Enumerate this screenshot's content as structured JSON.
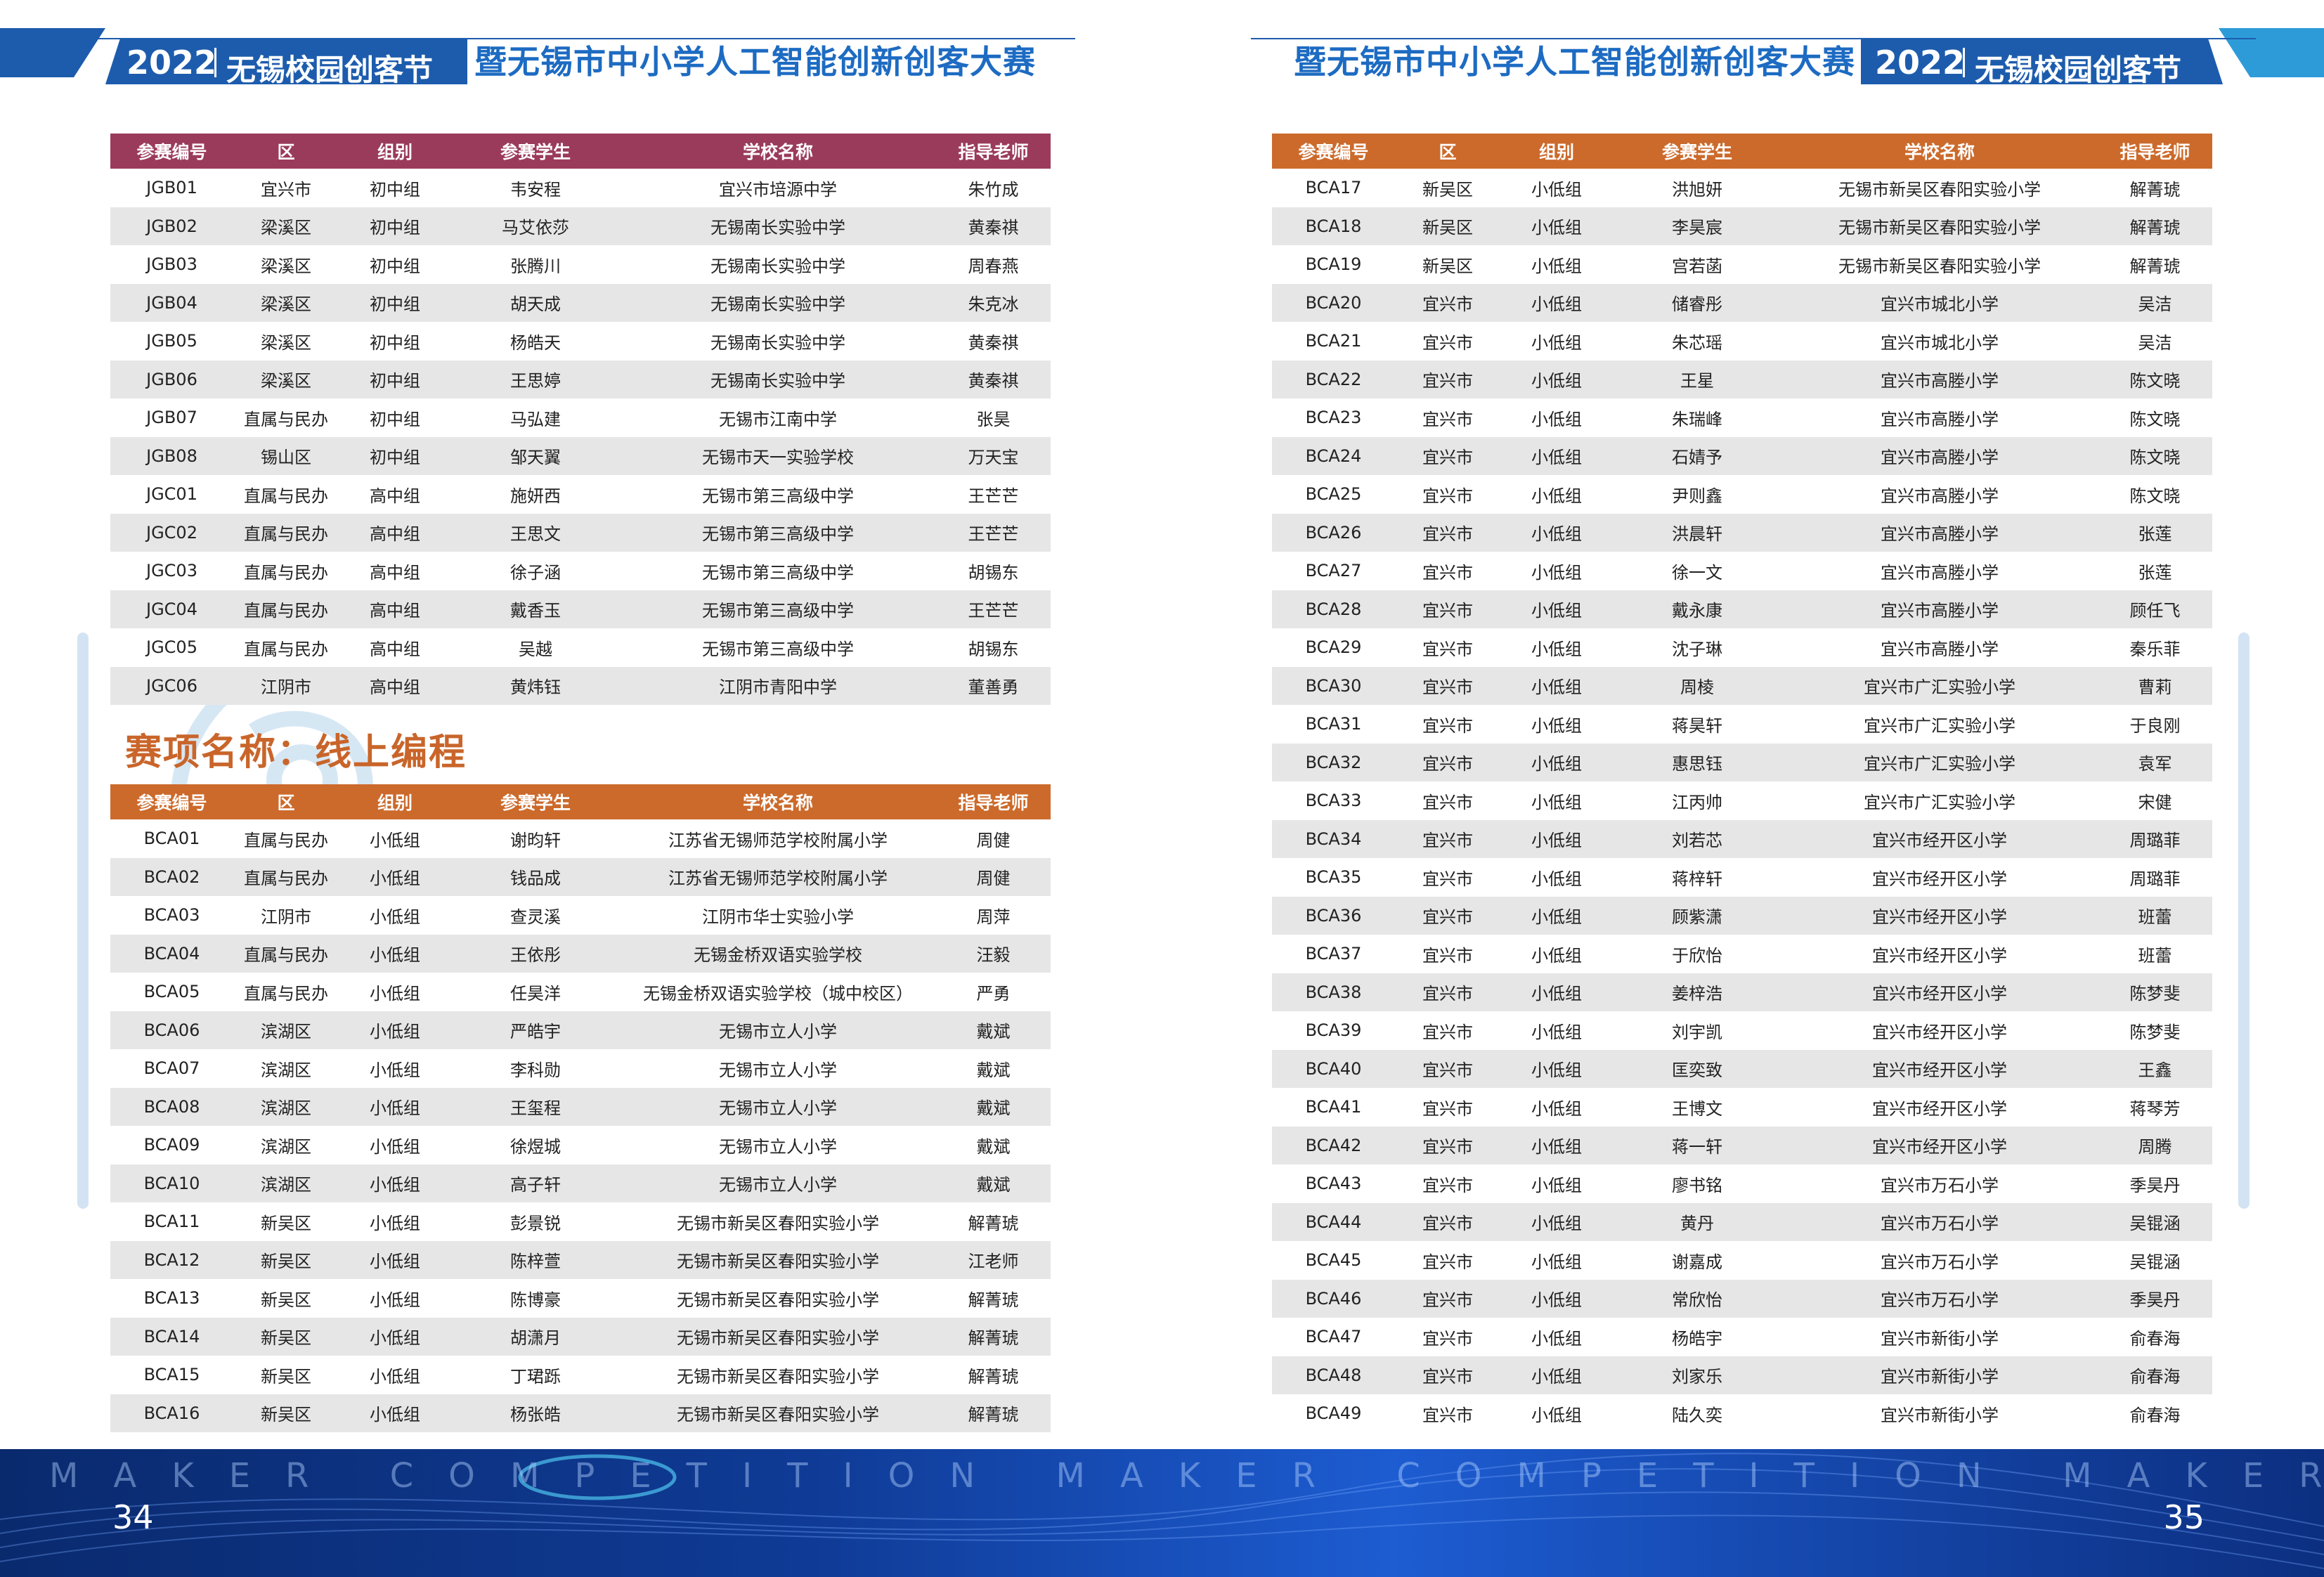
{
  "header": {
    "year": "2022",
    "festival": "无锡校园创客节",
    "title": "暨无锡市中小学人工智能创新创客大赛"
  },
  "columns": [
    "参赛编号",
    "区",
    "组别",
    "参赛学生",
    "学校名称",
    "指导老师"
  ],
  "section_title": "赛项名称：线上编程",
  "table_top_left": [
    [
      "JGB01",
      "宜兴市",
      "初中组",
      "韦安程",
      "宜兴市培源中学",
      "朱竹成"
    ],
    [
      "JGB02",
      "梁溪区",
      "初中组",
      "马艾依莎",
      "无锡南长实验中学",
      "黄秦祺"
    ],
    [
      "JGB03",
      "梁溪区",
      "初中组",
      "张腾川",
      "无锡南长实验中学",
      "周春燕"
    ],
    [
      "JGB04",
      "梁溪区",
      "初中组",
      "胡天成",
      "无锡南长实验中学",
      "朱克冰"
    ],
    [
      "JGB05",
      "梁溪区",
      "初中组",
      "杨皓天",
      "无锡南长实验中学",
      "黄秦祺"
    ],
    [
      "JGB06",
      "梁溪区",
      "初中组",
      "王思婷",
      "无锡南长实验中学",
      "黄秦祺"
    ],
    [
      "JGB07",
      "直属与民办",
      "初中组",
      "马弘建",
      "无锡市江南中学",
      "张昊"
    ],
    [
      "JGB08",
      "锡山区",
      "初中组",
      "邹天翼",
      "无锡市天一实验学校",
      "万天宝"
    ],
    [
      "JGC01",
      "直属与民办",
      "高中组",
      "施妍西",
      "无锡市第三高级中学",
      "王芒芒"
    ],
    [
      "JGC02",
      "直属与民办",
      "高中组",
      "王思文",
      "无锡市第三高级中学",
      "王芒芒"
    ],
    [
      "JGC03",
      "直属与民办",
      "高中组",
      "徐子涵",
      "无锡市第三高级中学",
      "胡锡东"
    ],
    [
      "JGC04",
      "直属与民办",
      "高中组",
      "戴香玉",
      "无锡市第三高级中学",
      "王芒芒"
    ],
    [
      "JGC05",
      "直属与民办",
      "高中组",
      "吴越",
      "无锡市第三高级中学",
      "胡锡东"
    ],
    [
      "JGC06",
      "江阴市",
      "高中组",
      "黄炜钰",
      "江阴市青阳中学",
      "董善勇"
    ]
  ],
  "table_bottom_left": [
    [
      "BCA01",
      "直属与民办",
      "小低组",
      "谢昀轩",
      "江苏省无锡师范学校附属小学",
      "周健"
    ],
    [
      "BCA02",
      "直属与民办",
      "小低组",
      "钱品成",
      "江苏省无锡师范学校附属小学",
      "周健"
    ],
    [
      "BCA03",
      "江阴市",
      "小低组",
      "查灵溪",
      "江阴市华士实验小学",
      "周萍"
    ],
    [
      "BCA04",
      "直属与民办",
      "小低组",
      "王依彤",
      "无锡金桥双语实验学校",
      "汪毅"
    ],
    [
      "BCA05",
      "直属与民办",
      "小低组",
      "任昊洋",
      "无锡金桥双语实验学校（城中校区）",
      "严勇"
    ],
    [
      "BCA06",
      "滨湖区",
      "小低组",
      "严皓宇",
      "无锡市立人小学",
      "戴斌"
    ],
    [
      "BCA07",
      "滨湖区",
      "小低组",
      "李科勋",
      "无锡市立人小学",
      "戴斌"
    ],
    [
      "BCA08",
      "滨湖区",
      "小低组",
      "王玺程",
      "无锡市立人小学",
      "戴斌"
    ],
    [
      "BCA09",
      "滨湖区",
      "小低组",
      "徐煜城",
      "无锡市立人小学",
      "戴斌"
    ],
    [
      "BCA10",
      "滨湖区",
      "小低组",
      "高子轩",
      "无锡市立人小学",
      "戴斌"
    ],
    [
      "BCA11",
      "新吴区",
      "小低组",
      "彭景锐",
      "无锡市新吴区春阳实验小学",
      "解菁琥"
    ],
    [
      "BCA12",
      "新吴区",
      "小低组",
      "陈梓萱",
      "无锡市新吴区春阳实验小学",
      "江老师"
    ],
    [
      "BCA13",
      "新吴区",
      "小低组",
      "陈博豪",
      "无锡市新吴区春阳实验小学",
      "解菁琥"
    ],
    [
      "BCA14",
      "新吴区",
      "小低组",
      "胡潇月",
      "无锡市新吴区春阳实验小学",
      "解菁琥"
    ],
    [
      "BCA15",
      "新吴区",
      "小低组",
      "丁珺跞",
      "无锡市新吴区春阳实验小学",
      "解菁琥"
    ],
    [
      "BCA16",
      "新吴区",
      "小低组",
      "杨张皓",
      "无锡市新吴区春阳实验小学",
      "解菁琥"
    ]
  ],
  "table_right": [
    [
      "BCA17",
      "新吴区",
      "小低组",
      "洪旭妍",
      "无锡市新吴区春阳实验小学",
      "解菁琥"
    ],
    [
      "BCA18",
      "新吴区",
      "小低组",
      "李昊宸",
      "无锡市新吴区春阳实验小学",
      "解菁琥"
    ],
    [
      "BCA19",
      "新吴区",
      "小低组",
      "宫若菡",
      "无锡市新吴区春阳实验小学",
      "解菁琥"
    ],
    [
      "BCA20",
      "宜兴市",
      "小低组",
      "储睿彤",
      "宜兴市城北小学",
      "吴洁"
    ],
    [
      "BCA21",
      "宜兴市",
      "小低组",
      "朱芯瑶",
      "宜兴市城北小学",
      "吴洁"
    ],
    [
      "BCA22",
      "宜兴市",
      "小低组",
      "王星",
      "宜兴市高塍小学",
      "陈文晓"
    ],
    [
      "BCA23",
      "宜兴市",
      "小低组",
      "朱瑞峰",
      "宜兴市高塍小学",
      "陈文晓"
    ],
    [
      "BCA24",
      "宜兴市",
      "小低组",
      "石婧予",
      "宜兴市高塍小学",
      "陈文晓"
    ],
    [
      "BCA25",
      "宜兴市",
      "小低组",
      "尹则鑫",
      "宜兴市高塍小学",
      "陈文晓"
    ],
    [
      "BCA26",
      "宜兴市",
      "小低组",
      "洪晨轩",
      "宜兴市高塍小学",
      "张莲"
    ],
    [
      "BCA27",
      "宜兴市",
      "小低组",
      "徐一文",
      "宜兴市高塍小学",
      "张莲"
    ],
    [
      "BCA28",
      "宜兴市",
      "小低组",
      "戴永康",
      "宜兴市高塍小学",
      "顾任飞"
    ],
    [
      "BCA29",
      "宜兴市",
      "小低组",
      "沈子琳",
      "宜兴市高塍小学",
      "秦乐菲"
    ],
    [
      "BCA30",
      "宜兴市",
      "小低组",
      "周棱",
      "宜兴市广汇实验小学",
      "曹莉"
    ],
    [
      "BCA31",
      "宜兴市",
      "小低组",
      "蒋昊轩",
      "宜兴市广汇实验小学",
      "于良刚"
    ],
    [
      "BCA32",
      "宜兴市",
      "小低组",
      "惠思钰",
      "宜兴市广汇实验小学",
      "袁军"
    ],
    [
      "BCA33",
      "宜兴市",
      "小低组",
      "江丙帅",
      "宜兴市广汇实验小学",
      "宋健"
    ],
    [
      "BCA34",
      "宜兴市",
      "小低组",
      "刘若芯",
      "宜兴市经开区小学",
      "周璐菲"
    ],
    [
      "BCA35",
      "宜兴市",
      "小低组",
      "蒋梓轩",
      "宜兴市经开区小学",
      "周璐菲"
    ],
    [
      "BCA36",
      "宜兴市",
      "小低组",
      "顾紫潇",
      "宜兴市经开区小学",
      "班蕾"
    ],
    [
      "BCA37",
      "宜兴市",
      "小低组",
      "于欣怡",
      "宜兴市经开区小学",
      "班蕾"
    ],
    [
      "BCA38",
      "宜兴市",
      "小低组",
      "姜梓浩",
      "宜兴市经开区小学",
      "陈梦斐"
    ],
    [
      "BCA39",
      "宜兴市",
      "小低组",
      "刘宇凯",
      "宜兴市经开区小学",
      "陈梦斐"
    ],
    [
      "BCA40",
      "宜兴市",
      "小低组",
      "匡奕致",
      "宜兴市经开区小学",
      "王鑫"
    ],
    [
      "BCA41",
      "宜兴市",
      "小低组",
      "王博文",
      "宜兴市经开区小学",
      "蒋琴芳"
    ],
    [
      "BCA42",
      "宜兴市",
      "小低组",
      "蒋一轩",
      "宜兴市经开区小学",
      "周腾"
    ],
    [
      "BCA43",
      "宜兴市",
      "小低组",
      "廖书铭",
      "宜兴市万石小学",
      "季昊丹"
    ],
    [
      "BCA44",
      "宜兴市",
      "小低组",
      "黄丹",
      "宜兴市万石小学",
      "吴锟涵"
    ],
    [
      "BCA45",
      "宜兴市",
      "小低组",
      "谢嘉成",
      "宜兴市万石小学",
      "吴锟涵"
    ],
    [
      "BCA46",
      "宜兴市",
      "小低组",
      "常欣怡",
      "宜兴市万石小学",
      "季昊丹"
    ],
    [
      "BCA47",
      "宜兴市",
      "小低组",
      "杨皓宇",
      "宜兴市新街小学",
      "俞春海"
    ],
    [
      "BCA48",
      "宜兴市",
      "小低组",
      "刘家乐",
      "宜兴市新街小学",
      "俞春海"
    ],
    [
      "BCA49",
      "宜兴市",
      "小低组",
      "陆久奕",
      "宜兴市新街小学",
      "俞春海"
    ]
  ],
  "footer": {
    "ticker": "MAKER COMPETITION MAKER COMPETITION MAKER COMPETITION",
    "page_left": "34",
    "page_right": "35"
  },
  "colors": {
    "brand_blue": "#1d5cad",
    "title_blue": "#1d6bc2",
    "header_maroon": "#9b3b5b",
    "header_orange": "#cc6a2b",
    "row_stripe": "#e6e6e6"
  }
}
